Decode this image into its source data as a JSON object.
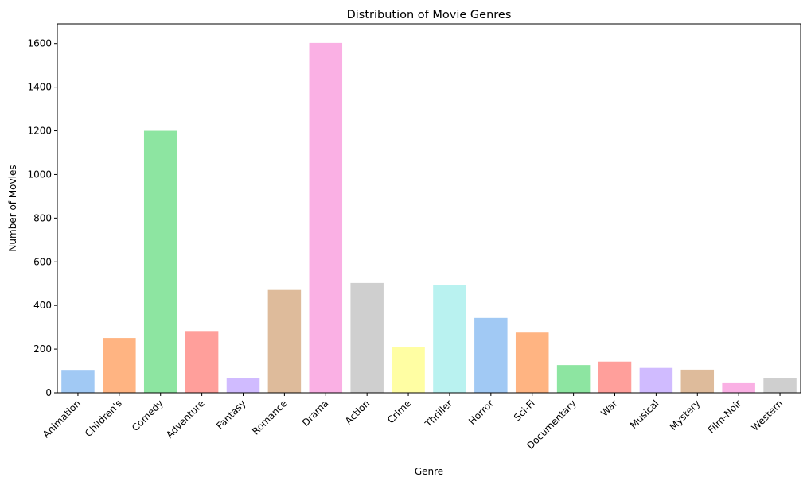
{
  "chart_data": {
    "type": "bar",
    "title": "Distribution of Movie Genres",
    "xlabel": "Genre",
    "ylabel": "Number of Movies",
    "ylim": [
      0,
      1690
    ],
    "yticks": [
      0,
      200,
      400,
      600,
      800,
      1000,
      1200,
      1400,
      1600
    ],
    "grid": false,
    "categories": [
      "Animation",
      "Children's",
      "Comedy",
      "Adventure",
      "Fantasy",
      "Romance",
      "Drama",
      "Action",
      "Crime",
      "Thriller",
      "Horror",
      "Sci-Fi",
      "Documentary",
      "War",
      "Musical",
      "Mystery",
      "Film-Noir",
      "Western"
    ],
    "values": [
      105,
      251,
      1200,
      283,
      68,
      471,
      1603,
      503,
      211,
      492,
      343,
      276,
      127,
      143,
      114,
      106,
      44,
      68
    ],
    "colors": [
      "#a1c9f4",
      "#ffb482",
      "#8de5a1",
      "#ff9f9b",
      "#d0bbff",
      "#debb9b",
      "#fab0e4",
      "#cfcfcf",
      "#fffea3",
      "#b9f2f0",
      "#a1c9f4",
      "#ffb482",
      "#8de5a1",
      "#ff9f9b",
      "#d0bbff",
      "#debb9b",
      "#fab0e4",
      "#cfcfcf"
    ]
  }
}
